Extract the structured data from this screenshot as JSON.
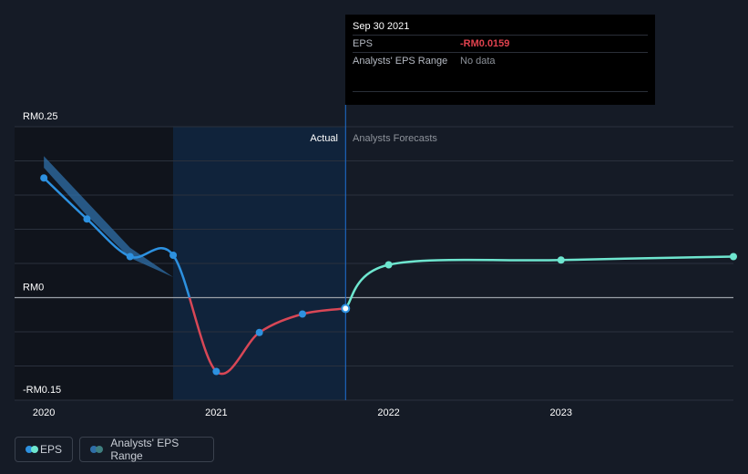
{
  "tooltip": {
    "date": "Sep 30 2021",
    "eps_label": "EPS",
    "eps_value": "-RM0.0159",
    "range_label": "Analysts' EPS Range",
    "range_value": "No data"
  },
  "region_labels": {
    "actual": "Actual",
    "forecast": "Analysts Forecasts"
  },
  "legend": {
    "eps": "EPS",
    "range": "Analysts' EPS Range"
  },
  "colors": {
    "eps_positive": "#2d91e0",
    "eps_negative": "#d84756",
    "forecast": "#6ee6cf",
    "range_band": "#2f6fa8"
  },
  "chart_data": {
    "type": "line",
    "y_tick_labels": [
      "RM0.25",
      "RM0",
      "-RM0.15"
    ],
    "y_ticks": [
      0.25,
      0,
      -0.15
    ],
    "ylim": [
      -0.15,
      0.25
    ],
    "x_tick_labels": [
      "2020",
      "2021",
      "2022",
      "2023"
    ],
    "x_ticks": [
      2020,
      2021,
      2022,
      2023
    ],
    "xlim": [
      2019.83,
      2024.0
    ],
    "actual_end": 2021.75,
    "series": [
      {
        "name": "EPS",
        "x": [
          2020.0,
          2020.25,
          2020.5,
          2020.75,
          2021.0,
          2021.25,
          2021.5,
          2021.75
        ],
        "y": [
          0.175,
          0.115,
          0.06,
          0.062,
          -0.108,
          -0.051,
          -0.024,
          -0.0159
        ]
      },
      {
        "name": "Analysts Forecasts",
        "x": [
          2021.75,
          2022.0,
          2023.0,
          2024.0
        ],
        "y": [
          -0.0159,
          0.048,
          0.055,
          0.06
        ]
      }
    ],
    "range_band": {
      "x": [
        2020.0,
        2020.25,
        2020.5,
        2020.75
      ],
      "upper": [
        0.207,
        0.14,
        0.073,
        0.03
      ],
      "lower": [
        0.19,
        0.12,
        0.058,
        0.03
      ]
    }
  }
}
